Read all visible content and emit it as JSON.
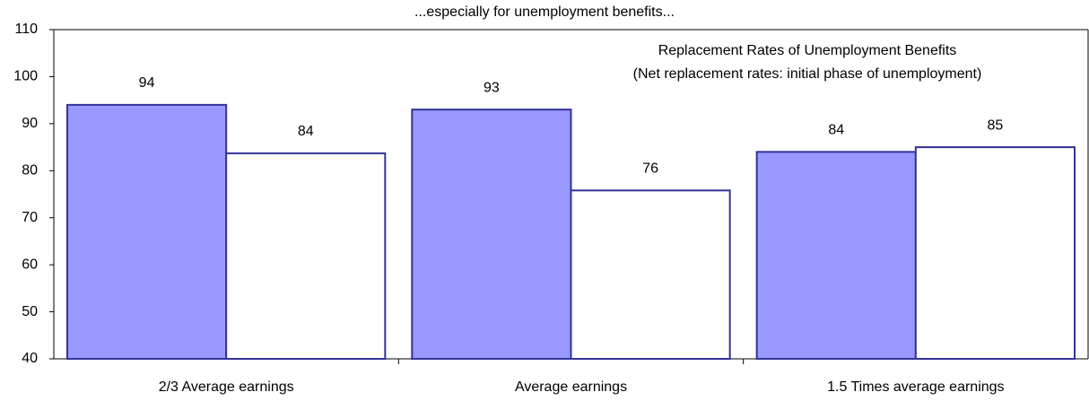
{
  "chart_data": {
    "type": "bar",
    "title": "...especially for unemployment benefits...",
    "annotations": [
      "Replacement Rates of Unemployment Benefits",
      "(Net replacement rates: initial phase of unemployment)"
    ],
    "categories": [
      "2/3 Average earnings",
      "Average earnings",
      "1.5 Times average earnings"
    ],
    "series": [
      {
        "color": "#9999ff",
        "values": [
          94,
          93,
          84
        ]
      },
      {
        "color": "#ffffff",
        "values": [
          83.7,
          75.8,
          85
        ],
        "value_labels": [
          "84",
          "76",
          "85"
        ]
      }
    ],
    "ylim": [
      40,
      110
    ],
    "yticks": [
      40,
      50,
      60,
      70,
      80,
      90,
      100,
      110
    ],
    "grid": false
  }
}
